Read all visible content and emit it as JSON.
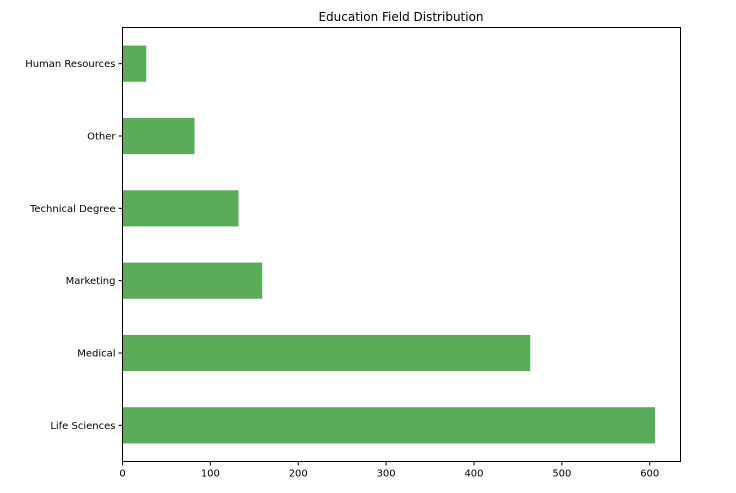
{
  "chart_data": {
    "type": "bar",
    "orientation": "horizontal",
    "title": "Education Field Distribution",
    "xlabel": "",
    "ylabel": "",
    "categories": [
      "Life Sciences",
      "Medical",
      "Marketing",
      "Technical Degree",
      "Other",
      "Human Resources"
    ],
    "values": [
      606,
      464,
      159,
      132,
      82,
      27
    ],
    "xlim": [
      0,
      635
    ],
    "xticks": [
      0,
      100,
      200,
      300,
      400,
      500,
      600
    ],
    "grid": false,
    "legend": "none",
    "color": "#5aac5a"
  }
}
